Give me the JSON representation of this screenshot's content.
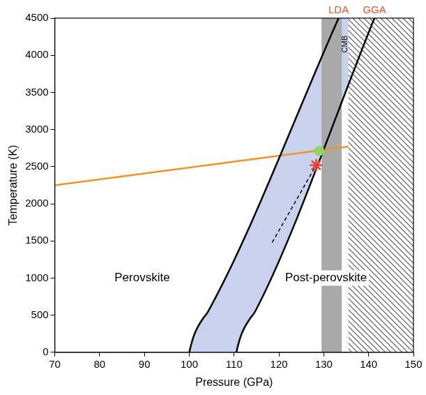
{
  "chart_data": {
    "type": "line",
    "xlabel": "Pressure (GPa)",
    "ylabel": "Temperature (K)",
    "xlim": [
      70,
      150
    ],
    "xticks": [
      70,
      80,
      90,
      100,
      110,
      120,
      130,
      140,
      150
    ],
    "ylim": [
      0,
      4500
    ],
    "yticks": [
      0,
      500,
      1000,
      1500,
      2000,
      2500,
      3000,
      3500,
      4000,
      4500
    ],
    "grid": false,
    "series": [
      {
        "name": "LDA",
        "color": "#000000",
        "x": [
          100,
          100.4,
          101,
          101.8,
          103,
          104.2,
          133.3
        ],
        "values": [
          0,
          100,
          220,
          330,
          450,
          550,
          4500
        ]
      },
      {
        "name": "GGA",
        "color": "#000000",
        "x": [
          110.5,
          110.9,
          111.5,
          112.3,
          113.5,
          114.7,
          141.3
        ],
        "values": [
          0,
          100,
          220,
          330,
          450,
          550,
          4500
        ]
      },
      {
        "color": "#f39325",
        "x": [
          70,
          135.5
        ],
        "values": [
          2250,
          2770
        ]
      },
      {
        "color": "#000000",
        "line_style": "dashed",
        "x": [
          118.5,
          128.3
        ],
        "values": [
          1480,
          2520
        ]
      },
      {
        "type": "scatter",
        "marker": "star",
        "color": "#e8402a",
        "x": [
          128.3
        ],
        "values": [
          2520
        ]
      },
      {
        "type": "scatter",
        "marker": "circle",
        "color": "#8fd860",
        "x": [
          129
        ],
        "values": [
          2710
        ]
      }
    ],
    "fill": {
      "between": [
        "LDA",
        "GGA"
      ],
      "color": "#c8d2ec"
    },
    "bands": [
      {
        "xlim": [
          129.5,
          134
        ],
        "color": "#a9a9a9"
      },
      {
        "xlim": [
          135.5,
          150
        ],
        "color": "#555555",
        "line_style": "hatched"
      }
    ],
    "annotations": [
      {
        "text": "Perovskite",
        "x": 89.5,
        "y": 1000
      },
      {
        "text": "Post-perovskite",
        "x": 130.5,
        "y": 1000
      },
      {
        "text": "CMB",
        "x": 134.75,
        "y": 4150,
        "orientation": "vertical"
      }
    ]
  }
}
